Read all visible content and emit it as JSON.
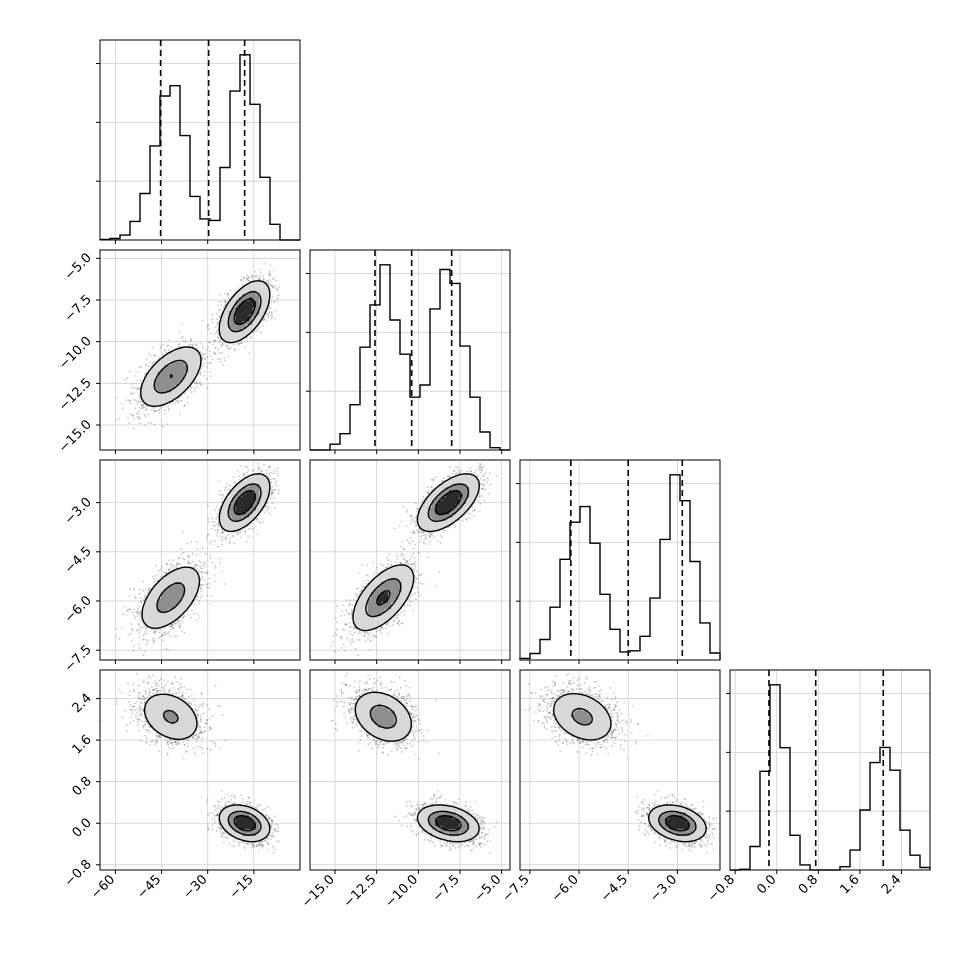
{
  "chart_data": {
    "type": "corner",
    "grid": true,
    "density": {
      "points_per_mode": 1300,
      "contour_levels": [
        0.15,
        0.45,
        0.72
      ],
      "hist_bins": 20,
      "hist_style": "step",
      "quantile_line_style": "dashed"
    },
    "parameters": [
      {
        "range": [
          -65,
          0
        ],
        "ticks": [
          -60,
          -45,
          -30,
          -15
        ],
        "tick_labels": [
          "−60",
          "−45",
          "−30",
          "−15"
        ],
        "quantiles": [
          -45.3,
          -29.7,
          -18.0
        ],
        "modes": [
          {
            "weight": 0.5,
            "mean": -42.0,
            "sd": 5.5
          },
          {
            "weight": 0.5,
            "mean": -18.0,
            "sd": 4.2
          }
        ]
      },
      {
        "range": [
          -16.5,
          -4.5
        ],
        "ticks": [
          -15.0,
          -12.5,
          -10.0,
          -7.5,
          -5.0
        ],
        "tick_labels": [
          "−15.0",
          "−12.5",
          "−10.0",
          "−7.5",
          "−5.0"
        ],
        "quantiles": [
          -12.6,
          -10.4,
          -8.0
        ],
        "modes": [
          {
            "weight": 0.5,
            "mean": -12.1,
            "sd": 1.0
          },
          {
            "weight": 0.5,
            "mean": -8.2,
            "sd": 0.95
          }
        ]
      },
      {
        "range": [
          -7.8,
          -1.7
        ],
        "ticks": [
          -7.5,
          -6.0,
          -4.5,
          -3.0
        ],
        "tick_labels": [
          "−7.5",
          "−6.0",
          "−4.5",
          "−3.0"
        ],
        "quantiles": [
          -6.25,
          -4.5,
          -2.85
        ],
        "modes": [
          {
            "weight": 0.5,
            "mean": -5.9,
            "sd": 0.55
          },
          {
            "weight": 0.5,
            "mean": -3.0,
            "sd": 0.45
          }
        ]
      },
      {
        "range": [
          -0.9,
          2.95
        ],
        "ticks": [
          -0.8,
          0.0,
          0.8,
          1.6,
          2.4
        ],
        "tick_labels": [
          "−0.8",
          "0.0",
          "0.8",
          "1.6",
          "2.4"
        ],
        "quantiles": [
          -0.15,
          0.75,
          2.05
        ],
        "modes": [
          {
            "weight": 0.5,
            "mean": 2.05,
            "sd": 0.28
          },
          {
            "weight": 0.5,
            "mean": 0.0,
            "sd": 0.18
          }
        ]
      }
    ],
    "correlations": [
      {
        "pair": [
          0,
          1
        ],
        "rho": 0.55
      },
      {
        "pair": [
          0,
          2
        ],
        "rho": 0.55
      },
      {
        "pair": [
          1,
          2
        ],
        "rho": 0.6
      },
      {
        "pair": [
          0,
          3
        ],
        "rho": -0.3
      },
      {
        "pair": [
          1,
          3
        ],
        "rho": -0.3
      },
      {
        "pair": [
          2,
          3
        ],
        "rho": -0.3
      }
    ]
  }
}
